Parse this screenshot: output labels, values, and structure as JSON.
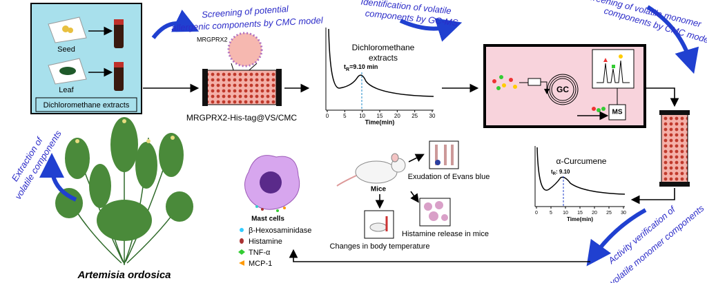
{
  "process_labels": {
    "allergenic_screening": [
      "Screening of potential",
      "allergenic components by CMC model"
    ],
    "gcms_identification": [
      "Identification of volatile",
      "components by GC-MS"
    ],
    "monomer_screening": [
      "Screening of volatile monomer",
      "components by CMC model"
    ],
    "extraction": [
      "Extraction of",
      "volatile components"
    ],
    "activity_verification": [
      "Activity verification of",
      "volatile monomer components"
    ]
  },
  "extraction_box": {
    "seed": "Seed",
    "leaf": "Leaf",
    "caption": "Dichloromethane extracts"
  },
  "cmc_column": {
    "receptor": "MRGPRX2",
    "caption": "MRGPRX2-His-tag@VS/CMC"
  },
  "chromatogram_extracts": {
    "title": [
      "Dichloromethane",
      "extracts"
    ],
    "peak_label": {
      "main": "t",
      "subscript": "R",
      "text": "=9.10 min"
    },
    "x_ticks": [
      "0",
      "5",
      "10",
      "15",
      "20",
      "25",
      "30"
    ],
    "x_label": "Time(min)"
  },
  "gcms_instrument": {
    "gc": "GC",
    "ms": "MS"
  },
  "chromatogram_curcumene": {
    "title": "α-Curcumene",
    "peak_label": {
      "main": "t",
      "subscript": "R",
      "text": ": 9.10"
    },
    "x_ticks": [
      "0",
      "5",
      "10",
      "15",
      "20",
      "25",
      "30"
    ],
    "x_label": "Time(min)"
  },
  "mast_cells": {
    "title": "Mast cells",
    "legend": [
      "β-Hexosaminidase",
      "Histamine",
      "TNF-α",
      "MCP-1"
    ]
  },
  "mice": {
    "title": "Mice",
    "evans_blue": "Exudation of Evans blue",
    "histamine_release": "Histamine release in mice",
    "body_temperature": "Changes in body temperature"
  },
  "plant": {
    "name": "Artemisia ordosica"
  }
}
